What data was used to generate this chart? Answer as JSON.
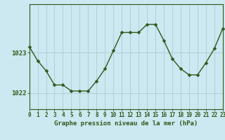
{
  "hours": [
    0,
    1,
    2,
    3,
    4,
    5,
    6,
    7,
    8,
    9,
    10,
    11,
    12,
    13,
    14,
    15,
    16,
    17,
    18,
    19,
    20,
    21,
    22,
    23
  ],
  "pressure": [
    1023.15,
    1022.8,
    1022.55,
    1022.2,
    1022.2,
    1022.05,
    1022.05,
    1022.05,
    1022.3,
    1022.6,
    1023.05,
    1023.5,
    1023.5,
    1023.5,
    1023.7,
    1023.7,
    1023.3,
    1022.85,
    1022.6,
    1022.45,
    1022.45,
    1022.75,
    1023.1,
    1023.6
  ],
  "yticks": [
    1022,
    1023
  ],
  "ylim": [
    1021.6,
    1024.2
  ],
  "xlim": [
    0,
    23
  ],
  "bg_color": "#cce8f0",
  "line_color": "#2d5a1b",
  "grid_color": "#aaccd8",
  "xlabel": "Graphe pression niveau de la mer (hPa)",
  "tick_fontsize": 5.5,
  "xlabel_fontsize": 6.5,
  "ylabel_fontsize": 6.5,
  "line_width": 1.0,
  "marker_size": 2.5
}
